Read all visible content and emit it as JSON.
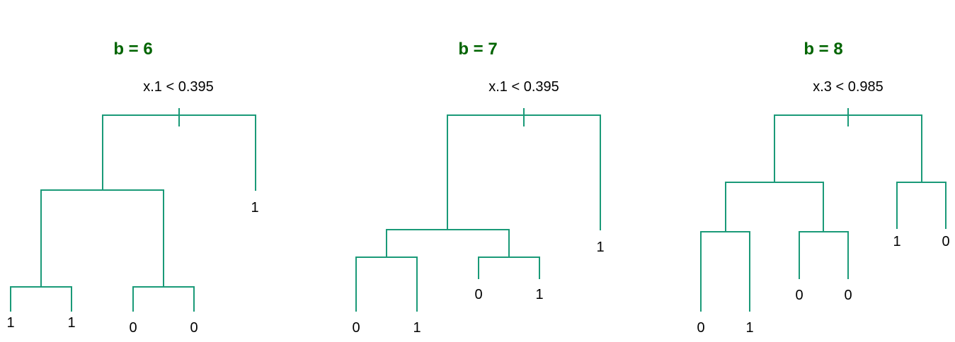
{
  "colors": {
    "title": "#006400",
    "edges": "#1a9a78",
    "text": "#000000"
  },
  "panels": [
    {
      "title": "b = 6",
      "root_split": "x.1 < 0.395",
      "tree": {
        "children": [
          {
            "children": [
              {
                "children": [
                  {
                    "leaf": "1"
                  },
                  {
                    "leaf": "1"
                  }
                ]
              },
              {
                "children": [
                  {
                    "leaf": "0"
                  },
                  {
                    "leaf": "0"
                  }
                ]
              }
            ]
          },
          {
            "leaf": "1"
          }
        ]
      }
    },
    {
      "title": "b = 7",
      "root_split": "x.1 < 0.395",
      "tree": {
        "children": [
          {
            "children": [
              {
                "children": [
                  {
                    "leaf": "0"
                  },
                  {
                    "leaf": "1"
                  }
                ]
              },
              {
                "children": [
                  {
                    "leaf": "0"
                  },
                  {
                    "leaf": "1"
                  }
                ]
              }
            ]
          },
          {
            "leaf": "1"
          }
        ]
      }
    },
    {
      "title": "b = 8",
      "root_split": "x.3 < 0.985",
      "tree": {
        "children": [
          {
            "children": [
              {
                "children": [
                  {
                    "leaf": "0"
                  },
                  {
                    "leaf": "1"
                  }
                ]
              },
              {
                "children": [
                  {
                    "leaf": "0"
                  },
                  {
                    "leaf": "0"
                  }
                ]
              }
            ]
          },
          {
            "children": [
              {
                "leaf": "1"
              },
              {
                "leaf": "0"
              }
            ]
          }
        ]
      }
    }
  ]
}
